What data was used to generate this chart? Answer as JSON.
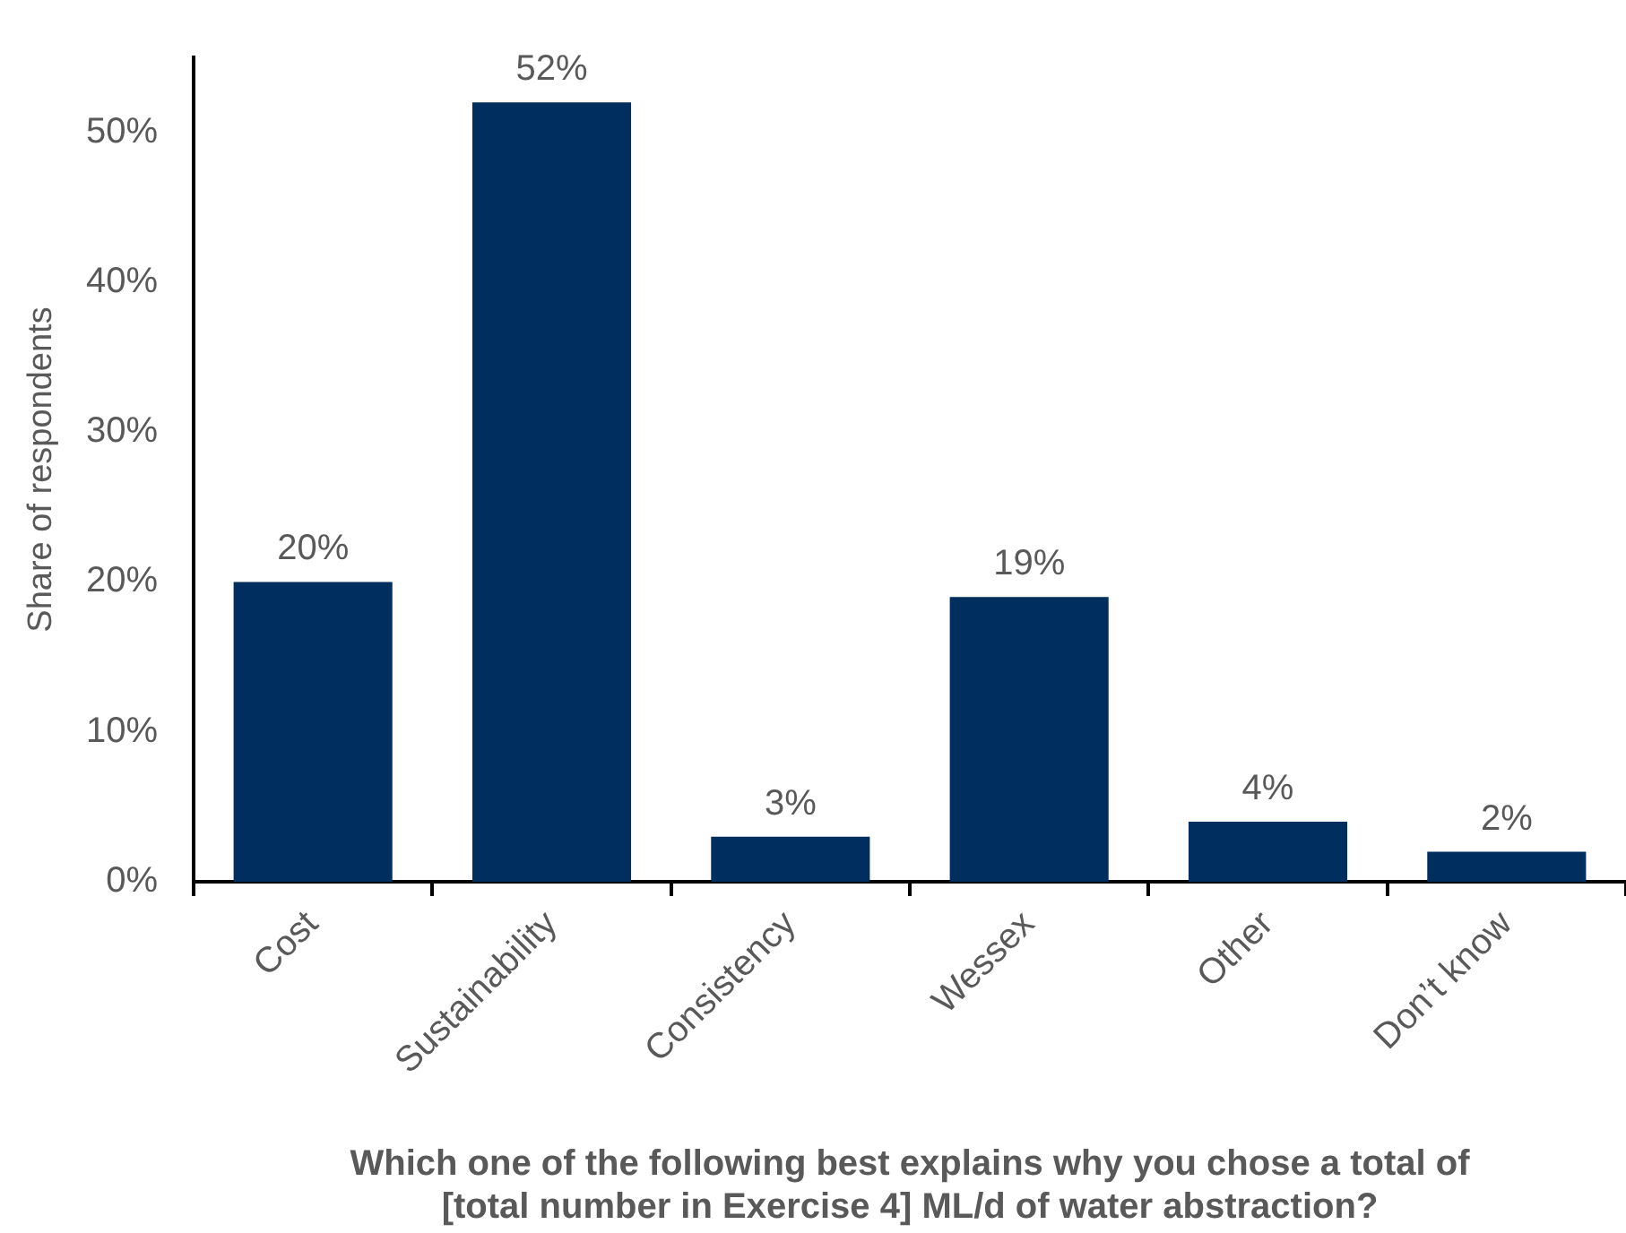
{
  "chart_data": {
    "type": "bar",
    "xlabel": "Which one of the following best explains why you chose a total of [total number in Exercise 4] ML/d of water abstraction?",
    "ylabel": "Share of respondents",
    "categories": [
      "Cost",
      "Sustainability",
      "Consistency",
      "Wessex",
      "Other",
      "Don’t know"
    ],
    "values": [
      20,
      52,
      3,
      19,
      4,
      2
    ],
    "value_labels": [
      "20%",
      "52%",
      "3%",
      "19%",
      "4%",
      "2%"
    ],
    "color": "#002f5f",
    "ylim": [
      0,
      55
    ],
    "yticks": [
      {
        "value": 0,
        "label": "0%"
      },
      {
        "value": 10,
        "label": "10%"
      },
      {
        "value": 20,
        "label": "20%"
      },
      {
        "value": 30,
        "label": "30%"
      },
      {
        "value": 40,
        "label": "40%"
      },
      {
        "value": 50,
        "label": "50%"
      }
    ],
    "grid": false,
    "legend": false
  }
}
